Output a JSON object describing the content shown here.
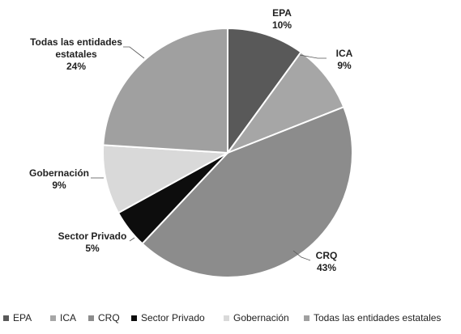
{
  "chart_data": {
    "type": "pie",
    "title": "",
    "categories": [
      "EPA",
      "ICA",
      "CRQ",
      "Sector Privado",
      "Gobernación",
      "Todas las entidades estatales"
    ],
    "values": [
      10,
      9,
      43,
      5,
      9,
      24
    ],
    "value_labels": [
      "10%",
      "9%",
      "43%",
      "5%",
      "9%",
      "24%"
    ],
    "colors": [
      "#595959",
      "#a6a6a6",
      "#8c8c8c",
      "#0d0d0d",
      "#d9d9d9",
      "#a0a0a0"
    ],
    "legend": {
      "placement": "bottom",
      "entries": [
        "EPA",
        "ICA",
        "CRQ",
        "Sector Privado",
        "Gobernación",
        "Todas las entidades estatales"
      ]
    },
    "start": "top",
    "direction": "clockwise"
  }
}
